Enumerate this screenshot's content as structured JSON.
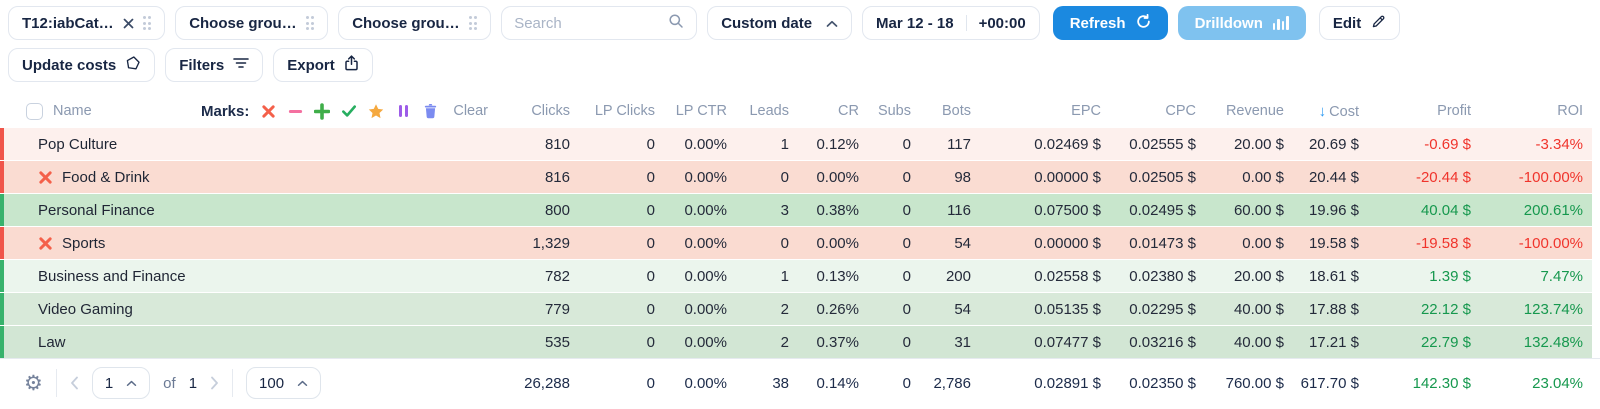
{
  "toolbar": {
    "group_chip": "T12:iabCat…",
    "choose_group_1": "Choose grou…",
    "choose_group_2": "Choose grou…",
    "search_placeholder": "Search",
    "date_preset": "Custom date",
    "date_range": "Mar 12 - 18",
    "timezone": "+00:00",
    "refresh_label": "Refresh",
    "drilldown_label": "Drilldown",
    "edit_label": "Edit",
    "update_costs_label": "Update costs",
    "filters_label": "Filters",
    "export_label": "Export"
  },
  "colors": {
    "refresh_blue": "#1b89e0",
    "drilldown_blue": "#7fc2ef",
    "positive_text": "#16984e",
    "negative_text": "#f0342c",
    "stripe_red": "#f0554a",
    "stripe_green": "#38b26c",
    "mark_cross": "#f4604a",
    "mark_minus": "#f470a0",
    "mark_plus": "#3fae49",
    "mark_check": "#27ae60",
    "mark_star": "#f5a93f",
    "mark_pause": "#9d5ce8",
    "mark_trash": "#7b8bf0",
    "sort_arrow": "#2f9bf2"
  },
  "table": {
    "name_header": "Name",
    "marks_label": "Marks:",
    "marks_icons": [
      "cross",
      "minus",
      "plus",
      "check",
      "star",
      "pause",
      "trash"
    ],
    "clear_label": "Clear",
    "columns": [
      "Clicks",
      "LP Clicks",
      "LP CTR",
      "Leads",
      "CR",
      "Subs",
      "Bots",
      "EPC",
      "CPC",
      "Revenue",
      "Cost",
      "Profit",
      "ROI"
    ],
    "sorted_column": "Cost",
    "sort_direction": "desc",
    "rows": [
      {
        "name": "Pop Culture",
        "mark": null,
        "bg": "#fdf0ed",
        "stripe": "#f0554a",
        "values": [
          "810",
          "0",
          "0.00%",
          "1",
          "0.12%",
          "0",
          "117",
          "0.02469 $",
          "0.02555 $",
          "20.00 $",
          "20.69 $",
          "-0.69 $",
          "-3.34%"
        ]
      },
      {
        "name": "Food & Drink",
        "mark": "cross",
        "bg": "#fadcd2",
        "stripe": "#f0554a",
        "values": [
          "816",
          "0",
          "0.00%",
          "0",
          "0.00%",
          "0",
          "98",
          "0.00000 $",
          "0.02505 $",
          "0.00 $",
          "20.44 $",
          "-20.44 $",
          "-100.00%"
        ]
      },
      {
        "name": "Personal Finance",
        "mark": null,
        "bg": "#c8e6cc",
        "stripe": "#38b26c",
        "values": [
          "800",
          "0",
          "0.00%",
          "3",
          "0.38%",
          "0",
          "116",
          "0.07500 $",
          "0.02495 $",
          "60.00 $",
          "19.96 $",
          "40.04 $",
          "200.61%"
        ]
      },
      {
        "name": "Sports",
        "mark": "cross",
        "bg": "#fadbd1",
        "stripe": "#f0554a",
        "values": [
          "1,329",
          "0",
          "0.00%",
          "0",
          "0.00%",
          "0",
          "54",
          "0.00000 $",
          "0.01473 $",
          "0.00 $",
          "19.58 $",
          "-19.58 $",
          "-100.00%"
        ]
      },
      {
        "name": "Business and Finance",
        "mark": null,
        "bg": "#ebf5ed",
        "stripe": "#38b26c",
        "values": [
          "782",
          "0",
          "0.00%",
          "1",
          "0.13%",
          "0",
          "200",
          "0.02558 $",
          "0.02380 $",
          "20.00 $",
          "18.61 $",
          "1.39 $",
          "7.47%"
        ]
      },
      {
        "name": "Video Gaming",
        "mark": null,
        "bg": "#d8e9d9",
        "stripe": "#38b26c",
        "values": [
          "779",
          "0",
          "0.00%",
          "2",
          "0.26%",
          "0",
          "54",
          "0.05135 $",
          "0.02295 $",
          "40.00 $",
          "17.88 $",
          "22.12 $",
          "123.74%"
        ]
      },
      {
        "name": "Law",
        "mark": null,
        "bg": "#d2e6d4",
        "stripe": "#38b26c",
        "values": [
          "535",
          "0",
          "0.00%",
          "2",
          "0.37%",
          "0",
          "31",
          "0.07477 $",
          "0.03216 $",
          "40.00 $",
          "17.21 $",
          "22.79 $",
          "132.48%"
        ]
      }
    ],
    "totals": [
      "26,288",
      "0",
      "0.00%",
      "38",
      "0.14%",
      "0",
      "2,786",
      "0.02891 $",
      "0.02350 $",
      "760.00 $",
      "617.70 $",
      "142.30 $",
      "23.04%"
    ]
  },
  "footer": {
    "page": "1",
    "of_label": "of",
    "total_pages": "1",
    "per_page": "100"
  }
}
